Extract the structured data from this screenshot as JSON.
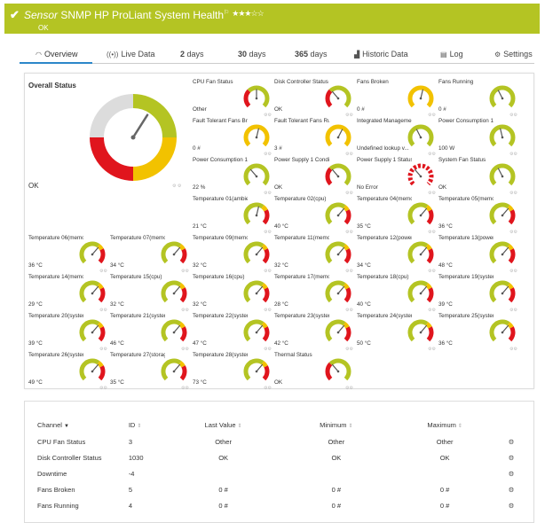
{
  "header": {
    "prefix": "Sensor",
    "title": "SNMP HP ProLiant System Health",
    "stars": "★★★☆☆",
    "status": "OK"
  },
  "tabs": [
    {
      "label": "Overview",
      "icon": "overview-icon"
    },
    {
      "label": "Live Data",
      "icon": "live-data-icon"
    },
    {
      "num": "2",
      "label": "days"
    },
    {
      "num": "30",
      "label": "days"
    },
    {
      "num": "365",
      "label": "days"
    },
    {
      "label": "Historic Data",
      "icon": "historic-data-icon"
    },
    {
      "label": "Log",
      "icon": "log-icon"
    },
    {
      "label": "Settings",
      "icon": "settings-icon"
    }
  ],
  "overall": {
    "label": "Overall Status",
    "value": "OK",
    "needle_fraction": 0.62
  },
  "gauges": [
    {
      "label": "CPU Fan Status",
      "value": "Other",
      "type": "status",
      "fraction": 0.5
    },
    {
      "label": "Disk Controller Status",
      "value": "OK",
      "type": "status",
      "fraction": 0.35
    },
    {
      "label": "Fans Broken",
      "value": "0 #",
      "type": "yellow",
      "fraction": 0.55
    },
    {
      "label": "Fans Running",
      "value": "0 #",
      "type": "green",
      "fraction": 0.4
    },
    {
      "label": "Fault Tolerant Fans Bro...",
      "value": "0 #",
      "type": "yellow",
      "fraction": 0.55
    },
    {
      "label": "Fault Tolerant Fans Ru...",
      "value": "3 #",
      "type": "yellow",
      "fraction": 0.6
    },
    {
      "label": "Integrated Manageme...",
      "value": "Undefined lookup v...",
      "type": "green",
      "fraction": 0.4
    },
    {
      "label": "Power Consumption 1",
      "value": "100 W",
      "type": "green",
      "fraction": 0.45
    },
    {
      "label": "Power Consumption 1",
      "value": "22 %",
      "type": "green",
      "fraction": 0.35
    },
    {
      "label": "Power Supply 1 Conditi...",
      "value": "OK",
      "type": "status",
      "fraction": 0.35
    },
    {
      "label": "Power Supply 1 Status",
      "value": "No Error",
      "type": "dashed",
      "fraction": 0.35
    },
    {
      "label": "System Fan Status",
      "value": "OK",
      "type": "green",
      "fraction": 0.4
    },
    {
      "label": "Temperature 01(ambie...",
      "value": "21 °C",
      "type": "temp",
      "fraction": 0.55
    },
    {
      "label": "Temperature 02(cpu)",
      "value": "40 °C",
      "type": "temp",
      "fraction": 0.65
    },
    {
      "label": "Temperature 04(memo...",
      "value": "35 °C",
      "type": "temp",
      "fraction": 0.65
    },
    {
      "label": "Temperature 05(memo...",
      "value": "36 °C",
      "type": "temp",
      "fraction": 0.65
    },
    {
      "label": "Temperature 06(memo...",
      "value": "36 °C",
      "type": "temp",
      "fraction": 0.65
    },
    {
      "label": "Temperature 07(memo...",
      "value": "34 °C",
      "type": "temp",
      "fraction": 0.65
    },
    {
      "label": "Temperature 09(memo...",
      "value": "32 °C",
      "type": "temp",
      "fraction": 0.65
    },
    {
      "label": "Temperature 11(memo...",
      "value": "32 °C",
      "type": "temp",
      "fraction": 0.65
    },
    {
      "label": "Temperature 12(power...",
      "value": "34 °C",
      "type": "temp",
      "fraction": 0.65
    },
    {
      "label": "Temperature 13(power...",
      "value": "48 °C",
      "type": "temp",
      "fraction": 0.65
    },
    {
      "label": "Temperature 14(memo...",
      "value": "29 °C",
      "type": "temp",
      "fraction": 0.65
    },
    {
      "label": "Temperature 15(cpu)",
      "value": "32 °C",
      "type": "temp",
      "fraction": 0.65
    },
    {
      "label": "Temperature 16(cpu)",
      "value": "32 °C",
      "type": "temp",
      "fraction": 0.65
    },
    {
      "label": "Temperature 17(memo...",
      "value": "28 °C",
      "type": "temp",
      "fraction": 0.65
    },
    {
      "label": "Temperature 18(cpu)",
      "value": "40 °C",
      "type": "temp",
      "fraction": 0.65
    },
    {
      "label": "Temperature 19(system)",
      "value": "39 °C",
      "type": "temp",
      "fraction": 0.65
    },
    {
      "label": "Temperature 20(system)",
      "value": "39 °C",
      "type": "temp",
      "fraction": 0.65
    },
    {
      "label": "Temperature 21(system)",
      "value": "46 °C",
      "type": "temp",
      "fraction": 0.65
    },
    {
      "label": "Temperature 22(system)",
      "value": "47 °C",
      "type": "temp",
      "fraction": 0.65
    },
    {
      "label": "Temperature 23(system)",
      "value": "42 °C",
      "type": "temp",
      "fraction": 0.65
    },
    {
      "label": "Temperature 24(system)",
      "value": "50 °C",
      "type": "temp",
      "fraction": 0.65
    },
    {
      "label": "Temperature 25(system)",
      "value": "36 °C",
      "type": "temp",
      "fraction": 0.65
    },
    {
      "label": "Temperature 26(system)",
      "value": "49 °C",
      "type": "temp",
      "fraction": 0.65
    },
    {
      "label": "Temperature 27(storag...",
      "value": "35 °C",
      "type": "temp",
      "fraction": 0.65
    },
    {
      "label": "Temperature 28(system)",
      "value": "73 °C",
      "type": "temp",
      "fraction": 0.65
    },
    {
      "label": "Thermal Status",
      "value": "OK",
      "type": "status",
      "fraction": 0.35
    }
  ],
  "table": {
    "headers": {
      "channel": "Channel",
      "id": "ID",
      "last_value": "Last Value",
      "minimum": "Minimum",
      "maximum": "Maximum"
    },
    "rows": [
      {
        "channel": "CPU Fan Status",
        "id": "3",
        "last": "Other",
        "min": "Other",
        "max": "Other"
      },
      {
        "channel": "Disk Controller Status",
        "id": "1030",
        "last": "OK",
        "min": "OK",
        "max": "OK"
      },
      {
        "channel": "Downtime",
        "id": "-4",
        "last": "",
        "min": "",
        "max": ""
      },
      {
        "channel": "Fans Broken",
        "id": "5",
        "last": "0 #",
        "min": "0 #",
        "max": "0 #"
      },
      {
        "channel": "Fans Running",
        "id": "4",
        "last": "0 #",
        "min": "0 #",
        "max": "0 #"
      }
    ]
  },
  "colors": {
    "green": "#b4c423",
    "yellow": "#f2c200",
    "red": "#e0151d",
    "grey": "#dcdcdc",
    "accent": "#2c87c9"
  }
}
